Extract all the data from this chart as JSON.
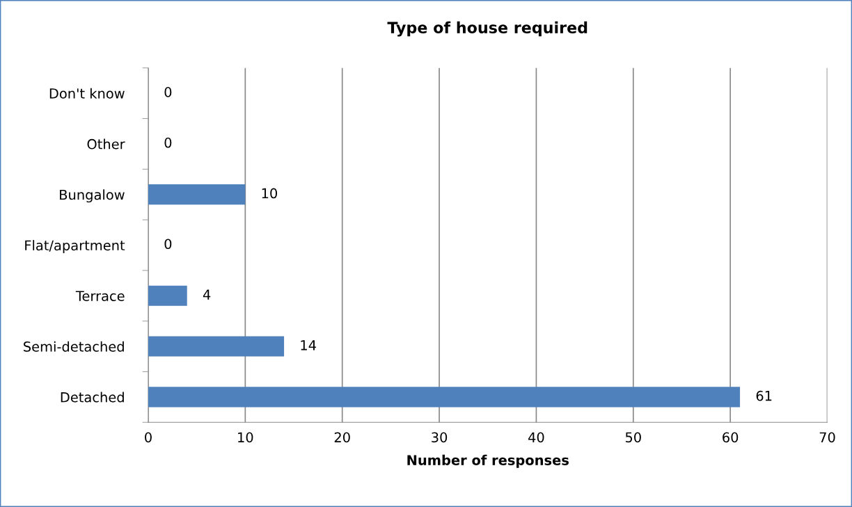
{
  "chart_data": {
    "type": "bar",
    "orientation": "horizontal",
    "title": "Type of house required",
    "xlabel": "Number of responses",
    "categories": [
      "Don't know",
      "Other",
      "Bungalow",
      "Flat/apartment",
      "Terrace",
      "Semi-detached",
      "Detached"
    ],
    "values": [
      0,
      0,
      10,
      0,
      4,
      14,
      61
    ],
    "color": "#4f81bd",
    "xlim": [
      0,
      70
    ],
    "xticks": [
      0,
      10,
      20,
      30,
      40,
      50,
      60,
      70
    ],
    "grid": "x",
    "data_labels": true
  }
}
